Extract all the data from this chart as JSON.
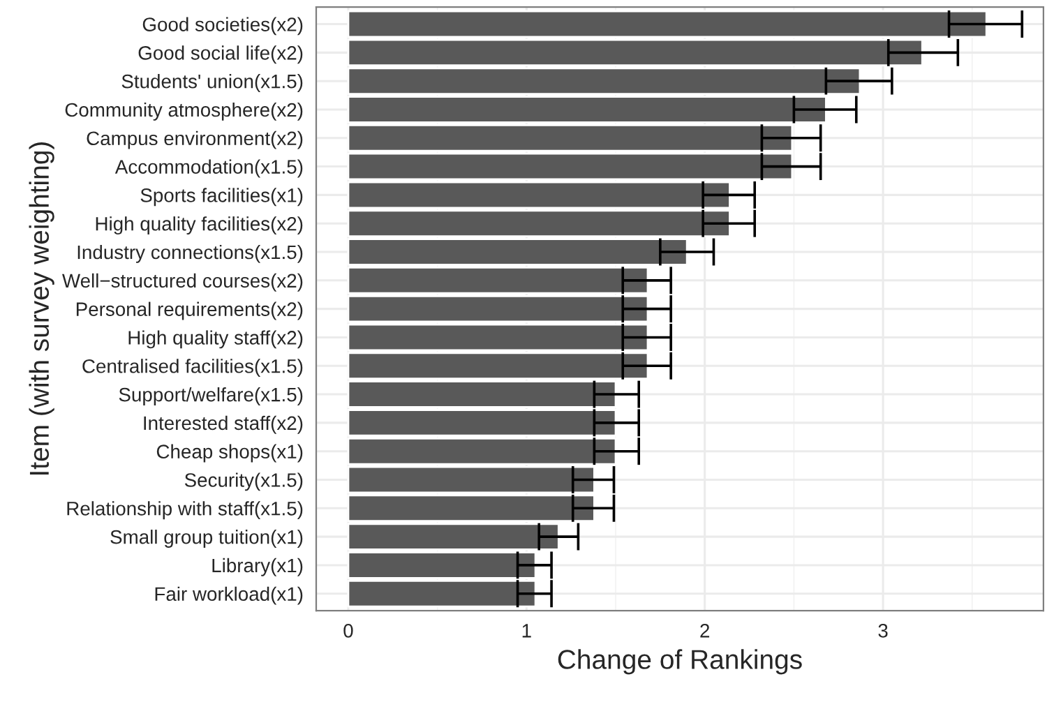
{
  "chart_data": {
    "type": "bar",
    "orientation": "horizontal",
    "xlabel": "Change of Rankings",
    "ylabel": "Item (with survey weighting)",
    "categories": [
      "Good societies(x2)",
      "Good social life(x2)",
      "Students' union(x1.5)",
      "Community atmosphere(x2)",
      "Campus environment(x2)",
      "Accommodation(x1.5)",
      "Sports facilities(x1)",
      "High quality facilities(x2)",
      "Industry connections(x1.5)",
      "Well−structured courses(x2)",
      "Personal requirements(x2)",
      "High quality staff(x2)",
      "Centralised facilities(x1.5)",
      "Support/welfare(x1.5)",
      "Interested staff(x2)",
      "Cheap shops(x1)",
      "Security(x1.5)",
      "Relationship with staff(x1.5)",
      "Small group tuition(x1)",
      "Library(x1)",
      "Fair workload(x1)"
    ],
    "values": [
      3.58,
      3.22,
      2.87,
      2.68,
      2.49,
      2.49,
      2.14,
      2.14,
      1.9,
      1.68,
      1.68,
      1.68,
      1.68,
      1.5,
      1.5,
      1.5,
      1.38,
      1.38,
      1.18,
      1.05,
      1.05
    ],
    "errors": [
      [
        3.37,
        3.78
      ],
      [
        3.03,
        3.42
      ],
      [
        2.68,
        3.05
      ],
      [
        2.5,
        2.85
      ],
      [
        2.32,
        2.65
      ],
      [
        2.32,
        2.65
      ],
      [
        1.99,
        2.28
      ],
      [
        1.99,
        2.28
      ],
      [
        1.75,
        2.05
      ],
      [
        1.54,
        1.81
      ],
      [
        1.54,
        1.81
      ],
      [
        1.54,
        1.81
      ],
      [
        1.54,
        1.81
      ],
      [
        1.38,
        1.63
      ],
      [
        1.38,
        1.63
      ],
      [
        1.38,
        1.63
      ],
      [
        1.26,
        1.49
      ],
      [
        1.26,
        1.49
      ],
      [
        1.07,
        1.29
      ],
      [
        0.95,
        1.14
      ],
      [
        0.95,
        1.14
      ]
    ],
    "color": "#595959",
    "xlim": [
      -0.18,
      3.9
    ],
    "xticks": [
      0,
      1,
      2,
      3
    ],
    "grid": true
  }
}
